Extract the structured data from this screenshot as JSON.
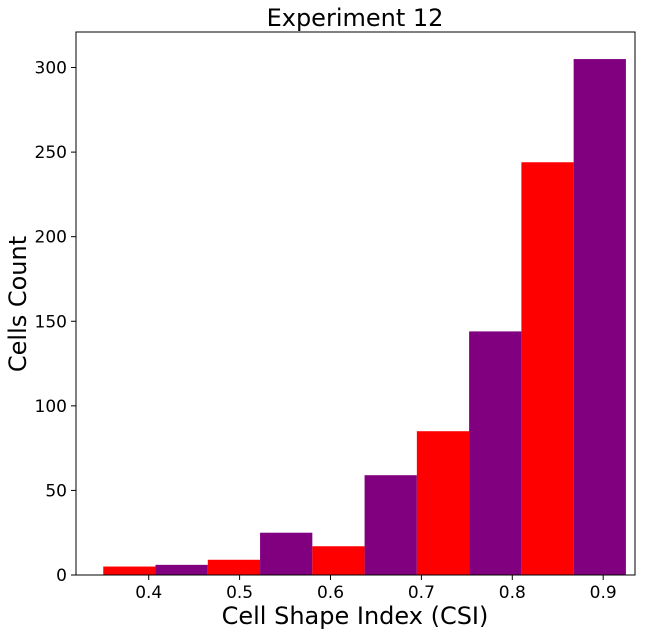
{
  "chart_data": {
    "type": "bar",
    "title": "Experiment 12",
    "xlabel": "Cell Shape Index (CSI)",
    "ylabel": "Cells Count",
    "xlim": [
      0.32,
      0.935
    ],
    "ylim": [
      0,
      321
    ],
    "xticks": [
      "0.4",
      "0.5",
      "0.6",
      "0.7",
      "0.8",
      "0.9"
    ],
    "xtick_values": [
      0.4,
      0.5,
      0.6,
      0.7,
      0.8,
      0.9
    ],
    "yticks": [
      "0",
      "50",
      "100",
      "150",
      "200",
      "250",
      "300"
    ],
    "ytick_values": [
      0,
      50,
      100,
      150,
      200,
      250,
      300
    ],
    "bin_width": 0.0575,
    "bars": [
      {
        "x_start": 0.35,
        "value": 5,
        "color": "#ff0000"
      },
      {
        "x_start": 0.4075,
        "value": 6,
        "color": "#800080"
      },
      {
        "x_start": 0.465,
        "value": 9,
        "color": "#ff0000"
      },
      {
        "x_start": 0.5225,
        "value": 25,
        "color": "#800080"
      },
      {
        "x_start": 0.58,
        "value": 17,
        "color": "#ff0000"
      },
      {
        "x_start": 0.6375,
        "value": 59,
        "color": "#800080"
      },
      {
        "x_start": 0.695,
        "value": 85,
        "color": "#ff0000"
      },
      {
        "x_start": 0.7525,
        "value": 144,
        "color": "#800080"
      },
      {
        "x_start": 0.81,
        "value": 244,
        "color": "#ff0000"
      },
      {
        "x_start": 0.8675,
        "value": 305,
        "color": "#800080"
      }
    ],
    "grid": false,
    "legend": "none"
  }
}
